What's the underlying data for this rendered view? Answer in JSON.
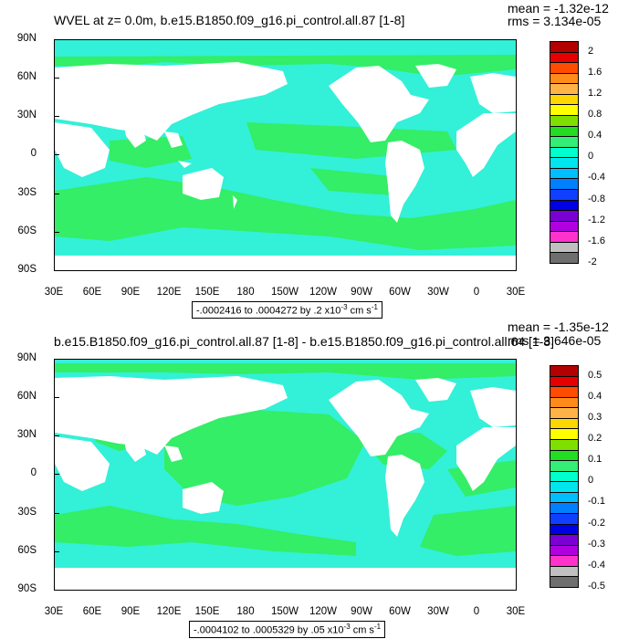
{
  "chart_data": [
    {
      "type": "heatmap",
      "title": "WVEL at z=   0.0m, b.e15.B1850.f09_g16.pi_control.all.87 [1-8]",
      "stats": {
        "mean": "mean = -1.32e-12",
        "rms": "rms = 3.134e-05"
      },
      "y_ticks": [
        "90N",
        "60N",
        "30N",
        "0",
        "30S",
        "60S",
        "90S"
      ],
      "x_ticks": [
        "30E",
        "60E",
        "90E",
        "120E",
        "150E",
        "180",
        "150W",
        "120W",
        "90W",
        "60W",
        "30W",
        "0",
        "30E"
      ],
      "info": {
        "range": "-.0002416 to .0004272 by .2 x10",
        "exp": "-3",
        "units": " cm s",
        "units_exp": "-1"
      },
      "colorbar": {
        "labels": [
          "2",
          "1.6",
          "1.2",
          "0.8",
          "0.4",
          "0",
          "-0.4",
          "-0.8",
          "-1.2",
          "-1.6",
          "-2"
        ],
        "colors": [
          "#b30000",
          "#e60000",
          "#ff4c00",
          "#ff8c1a",
          "#ffb347",
          "#ffd700",
          "#ffff00",
          "#7fe000",
          "#22dd22",
          "#33ee77",
          "#00ffcc",
          "#00e5ee",
          "#00bfff",
          "#0080ff",
          "#1040ff",
          "#0000e6",
          "#7b00d4",
          "#b000e0",
          "#ff33cc",
          "#c0c0c0",
          "#6e6e6e"
        ]
      }
    },
    {
      "type": "heatmap",
      "title": "b.e15.B1850.f09_g16.pi_control.all.87 [1-8] - b.e15.B1850.f09_g16.pi_control.all.64 [1-8]",
      "stats": {
        "mean": "mean = -1.35e-12",
        "rms": "rms = 3.646e-05"
      },
      "y_ticks": [
        "90N",
        "60N",
        "30N",
        "0",
        "30S",
        "60S",
        "90S"
      ],
      "x_ticks": [
        "30E",
        "60E",
        "90E",
        "120E",
        "150E",
        "180",
        "150W",
        "120W",
        "90W",
        "60W",
        "30W",
        "0",
        "30E"
      ],
      "info": {
        "range": "-.0004102 to .0005329 by .05 x10",
        "exp": "-3",
        "units": " cm s",
        "units_exp": "-1"
      },
      "colorbar": {
        "labels": [
          "0.5",
          "0.4",
          "0.3",
          "0.2",
          "0.1",
          "0",
          "-0.1",
          "-0.2",
          "-0.3",
          "-0.4",
          "-0.5"
        ],
        "colors": [
          "#b30000",
          "#e60000",
          "#ff4c00",
          "#ff8c1a",
          "#ffb347",
          "#ffd700",
          "#ffff00",
          "#7fe000",
          "#22dd22",
          "#33ee77",
          "#00ffcc",
          "#00e5ee",
          "#00bfff",
          "#0080ff",
          "#1040ff",
          "#0000e6",
          "#7b00d4",
          "#b000e0",
          "#ff33cc",
          "#c0c0c0",
          "#6e6e6e"
        ]
      }
    }
  ],
  "colors": {
    "ocean_green": "#33ee66",
    "ocean_cyan": "#33f0d8",
    "land": "#ffffff"
  }
}
